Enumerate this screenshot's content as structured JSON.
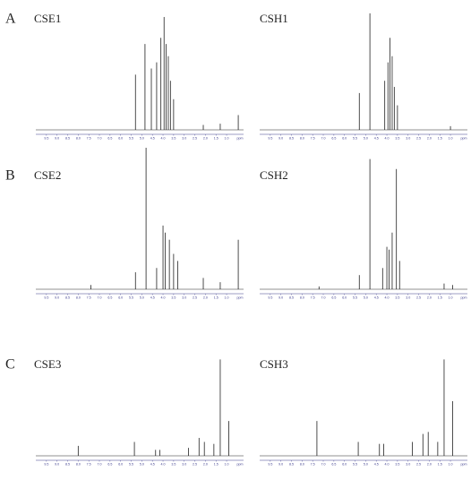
{
  "chart_data": [
    {
      "type": "spectrum",
      "panel_label": "A",
      "title": "CSE1",
      "color": "#222222",
      "axis_color": "#3a3a8c",
      "x_label": "ppm",
      "xlim": [
        10,
        0.2
      ],
      "xticks": [
        9.5,
        {
          "value": 9,
          "label": "9.0"
        },
        8.5,
        {
          "value": 8,
          "label": "8.0"
        },
        7.5,
        {
          "value": 7,
          "label": "7.0"
        },
        6.5,
        {
          "value": 6,
          "label": "6.0"
        },
        5.5,
        {
          "value": 5,
          "label": "5.0"
        },
        4.5,
        {
          "value": 4,
          "label": "4.0"
        },
        3.5,
        {
          "value": 3,
          "label": "3.0"
        },
        2.5,
        {
          "value": 2,
          "label": "2.0"
        },
        1.5,
        {
          "value": 1,
          "label": "1.0"
        }
      ],
      "ylim": [
        0,
        100
      ],
      "x": [
        5.3,
        4.85,
        4.55,
        4.3,
        4.1,
        3.95,
        3.85,
        3.75,
        3.65,
        3.5,
        2.1,
        1.3,
        0.45
      ],
      "values": [
        45,
        70,
        50,
        55,
        75,
        92,
        70,
        60,
        40,
        25,
        4,
        5,
        12
      ]
    },
    {
      "type": "spectrum",
      "title": "CSH1",
      "color": "#222222",
      "axis_color": "#3a3a8c",
      "x_label": "ppm",
      "xlim": [
        10,
        0.2
      ],
      "xticks": [
        9.5,
        {
          "value": 9,
          "label": "9.0"
        },
        8.5,
        {
          "value": 8,
          "label": "8.0"
        },
        7.5,
        {
          "value": 7,
          "label": "7.0"
        },
        6.5,
        {
          "value": 6,
          "label": "6.0"
        },
        5.5,
        {
          "value": 5,
          "label": "5.0"
        },
        4.5,
        {
          "value": 4,
          "label": "4.0"
        },
        3.5,
        {
          "value": 3,
          "label": "3.0"
        },
        2.5,
        {
          "value": 2,
          "label": "2.0"
        },
        1.5,
        {
          "value": 1,
          "label": "1.0"
        }
      ],
      "ylim": [
        0,
        100
      ],
      "x": [
        5.3,
        4.8,
        4.1,
        3.95,
        3.85,
        3.75,
        3.65,
        3.5,
        1.0
      ],
      "values": [
        30,
        95,
        40,
        55,
        75,
        60,
        35,
        20,
        3
      ]
    },
    {
      "type": "spectrum",
      "panel_label": "B",
      "title": "CSE2",
      "color": "#222222",
      "axis_color": "#3a3a8c",
      "x_label": "ppm",
      "xlim": [
        10,
        0.2
      ],
      "xticks": [
        9.5,
        {
          "value": 9,
          "label": "9.0"
        },
        8.5,
        {
          "value": 8,
          "label": "8.0"
        },
        7.5,
        {
          "value": 7,
          "label": "7.0"
        },
        6.5,
        {
          "value": 6,
          "label": "6.0"
        },
        5.5,
        {
          "value": 5,
          "label": "5.0"
        },
        4.5,
        {
          "value": 4,
          "label": "4.0"
        },
        3.5,
        {
          "value": 3,
          "label": "3.0"
        },
        2.5,
        {
          "value": 2,
          "label": "2.0"
        },
        1.5,
        {
          "value": 1,
          "label": "1.0"
        }
      ],
      "ylim": [
        0,
        100
      ],
      "x": [
        7.4,
        5.3,
        4.8,
        4.3,
        4.0,
        3.9,
        3.7,
        3.5,
        3.3,
        2.1,
        1.3,
        0.45
      ],
      "values": [
        3,
        12,
        100,
        15,
        45,
        40,
        35,
        25,
        20,
        8,
        5,
        35
      ]
    },
    {
      "type": "spectrum",
      "title": "CSH2",
      "color": "#222222",
      "axis_color": "#3a3a8c",
      "x_label": "ppm",
      "xlim": [
        10,
        0.2
      ],
      "xticks": [
        9.5,
        {
          "value": 9,
          "label": "9.0"
        },
        8.5,
        {
          "value": 8,
          "label": "8.0"
        },
        7.5,
        {
          "value": 7,
          "label": "7.0"
        },
        6.5,
        {
          "value": 6,
          "label": "6.0"
        },
        5.5,
        {
          "value": 5,
          "label": "5.0"
        },
        4.5,
        {
          "value": 4,
          "label": "4.0"
        },
        3.5,
        {
          "value": 3,
          "label": "3.0"
        },
        2.5,
        {
          "value": 2,
          "label": "2.0"
        },
        1.5,
        {
          "value": 1,
          "label": "1.0"
        }
      ],
      "ylim": [
        0,
        100
      ],
      "x": [
        7.2,
        5.3,
        4.8,
        4.2,
        4.0,
        3.9,
        3.75,
        3.55,
        3.4,
        1.3,
        0.9
      ],
      "values": [
        2,
        10,
        92,
        15,
        30,
        28,
        40,
        85,
        20,
        4,
        3
      ]
    },
    {
      "type": "spectrum",
      "panel_label": "C",
      "title": "CSE3",
      "color": "#222222",
      "axis_color": "#3a3a8c",
      "x_label": "ppm",
      "xlim": [
        10,
        0.2
      ],
      "xticks": [
        9.5,
        {
          "value": 9,
          "label": "9.0"
        },
        8.5,
        {
          "value": 8,
          "label": "8.0"
        },
        7.5,
        {
          "value": 7,
          "label": "7.0"
        },
        6.5,
        {
          "value": 6,
          "label": "6.0"
        },
        5.5,
        {
          "value": 5,
          "label": "5.0"
        },
        4.5,
        {
          "value": 4,
          "label": "4.0"
        },
        3.5,
        {
          "value": 3,
          "label": "3.0"
        },
        2.5,
        {
          "value": 2,
          "label": "2.0"
        },
        1.5,
        {
          "value": 1,
          "label": "1.0"
        }
      ],
      "ylim": [
        0,
        100
      ],
      "x": [
        8.0,
        5.35,
        4.35,
        4.15,
        2.8,
        2.3,
        2.05,
        1.6,
        1.3,
        0.9
      ],
      "values": [
        10,
        14,
        6,
        6,
        8,
        18,
        14,
        12,
        97,
        35
      ]
    },
    {
      "type": "spectrum",
      "title": "CSH3",
      "color": "#222222",
      "axis_color": "#3a3a8c",
      "x_label": "ppm",
      "xlim": [
        10,
        0.2
      ],
      "xticks": [
        9.5,
        {
          "value": 9,
          "label": "9.0"
        },
        8.5,
        {
          "value": 8,
          "label": "8.0"
        },
        7.5,
        {
          "value": 7,
          "label": "7.0"
        },
        6.5,
        {
          "value": 6,
          "label": "6.0"
        },
        5.5,
        {
          "value": 5,
          "label": "5.0"
        },
        4.5,
        {
          "value": 4,
          "label": "4.0"
        },
        3.5,
        {
          "value": 3,
          "label": "3.0"
        },
        2.5,
        {
          "value": 2,
          "label": "2.0"
        },
        1.5,
        {
          "value": 1,
          "label": "1.0"
        }
      ],
      "ylim": [
        0,
        100
      ],
      "x": [
        7.3,
        5.35,
        4.35,
        4.15,
        2.8,
        2.3,
        2.05,
        1.6,
        1.3,
        0.9
      ],
      "values": [
        35,
        14,
        12,
        12,
        14,
        22,
        24,
        14,
        97,
        55
      ]
    }
  ]
}
